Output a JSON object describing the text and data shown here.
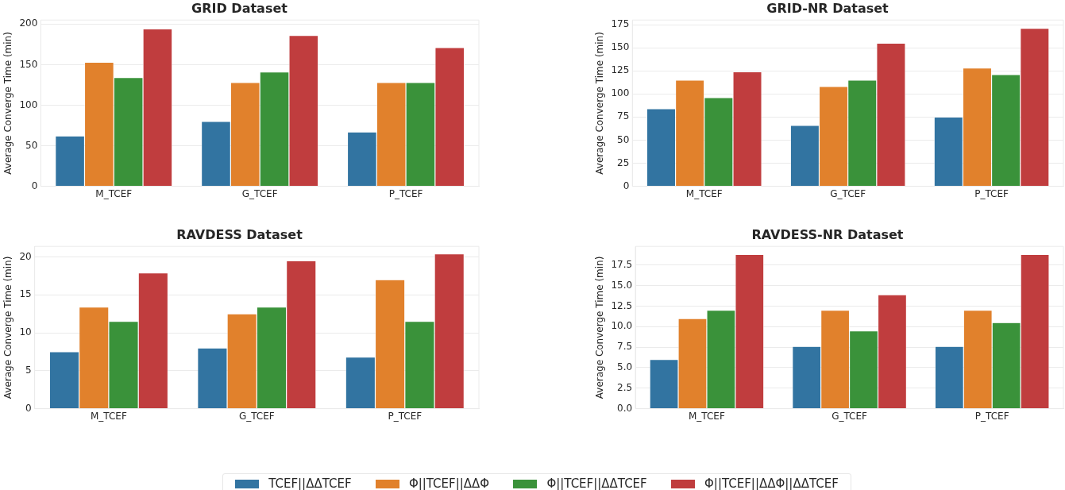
{
  "chart_data": [
    {
      "type": "bar",
      "title": "GRID Dataset",
      "ylabel": "Average Converge Time (min)",
      "categories": [
        "M_TCEF",
        "G_TCEF",
        "P_TCEF"
      ],
      "ylim": [
        0,
        205
      ],
      "yticks": [
        0,
        50,
        100,
        150,
        200
      ],
      "grid": "y",
      "legend": "bottom",
      "series": [
        {
          "name": "TCEF||ΔΔTCEF",
          "color": "#3274a1",
          "values": [
            62,
            80,
            67
          ]
        },
        {
          "name": "Φ||TCEF||ΔΔΦ",
          "color": "#e1812c",
          "values": [
            153,
            128,
            128
          ]
        },
        {
          "name": "Φ||TCEF||ΔΔTCEF",
          "color": "#3a923a",
          "values": [
            134,
            141,
            128
          ]
        },
        {
          "name": "Φ||TCEF||ΔΔΦ||ΔΔTCEF",
          "color": "#c03d3e",
          "values": [
            194,
            186,
            171
          ]
        }
      ]
    },
    {
      "type": "bar",
      "title": "GRID-NR Dataset",
      "ylabel": "Average Converge Time (min)",
      "categories": [
        "M_TCEF",
        "G_TCEF",
        "P_TCEF"
      ],
      "ylim": [
        0,
        180
      ],
      "yticks": [
        0,
        25,
        50,
        75,
        100,
        125,
        150,
        175
      ],
      "grid": "y",
      "series": [
        {
          "color": "#3274a1",
          "values": [
            84,
            66,
            75
          ]
        },
        {
          "color": "#e1812c",
          "values": [
            115,
            108,
            128
          ]
        },
        {
          "color": "#3a923a",
          "values": [
            96,
            115,
            121
          ]
        },
        {
          "color": "#c03d3e",
          "values": [
            124,
            155,
            171
          ]
        }
      ]
    },
    {
      "type": "bar",
      "title": "RAVDESS Dataset",
      "ylabel": "Average Converge Time (min)",
      "categories": [
        "M_TCEF",
        "G_TCEF",
        "P_TCEF"
      ],
      "ylim": [
        0,
        21.4
      ],
      "yticks": [
        0,
        5,
        10,
        15,
        20
      ],
      "grid": "y",
      "series": [
        {
          "color": "#3274a1",
          "values": [
            7.5,
            8.0,
            6.8
          ]
        },
        {
          "color": "#e1812c",
          "values": [
            13.4,
            12.5,
            17.0
          ]
        },
        {
          "color": "#3a923a",
          "values": [
            11.5,
            13.4,
            11.5
          ]
        },
        {
          "color": "#c03d3e",
          "values": [
            17.9,
            19.5,
            20.4
          ]
        }
      ]
    },
    {
      "type": "bar",
      "title": "RAVDESS-NR Dataset",
      "ylabel": "Average Converge Time (min)",
      "categories": [
        "M_TCEF",
        "G_TCEF",
        "P_TCEF"
      ],
      "ylim": [
        0,
        19.8
      ],
      "yticks": [
        {
          "value": 0,
          "label": "0.0"
        },
        {
          "value": 2.5,
          "label": "2.5"
        },
        {
          "value": 5,
          "label": "5.0"
        },
        {
          "value": 7.5,
          "label": "7.5"
        },
        {
          "value": 10,
          "label": "10.0"
        },
        {
          "value": 12.5,
          "label": "12.5"
        },
        {
          "value": 15,
          "label": "15.0"
        },
        {
          "value": 17.5,
          "label": "17.5"
        }
      ],
      "grid": "y",
      "series": [
        {
          "color": "#3274a1",
          "values": [
            6.0,
            7.6,
            7.6
          ]
        },
        {
          "color": "#e1812c",
          "values": [
            11.0,
            12.0,
            12.0
          ]
        },
        {
          "color": "#3a923a",
          "values": [
            12.0,
            9.5,
            10.5
          ]
        },
        {
          "color": "#c03d3e",
          "values": [
            18.8,
            13.9,
            18.8
          ]
        }
      ]
    }
  ]
}
